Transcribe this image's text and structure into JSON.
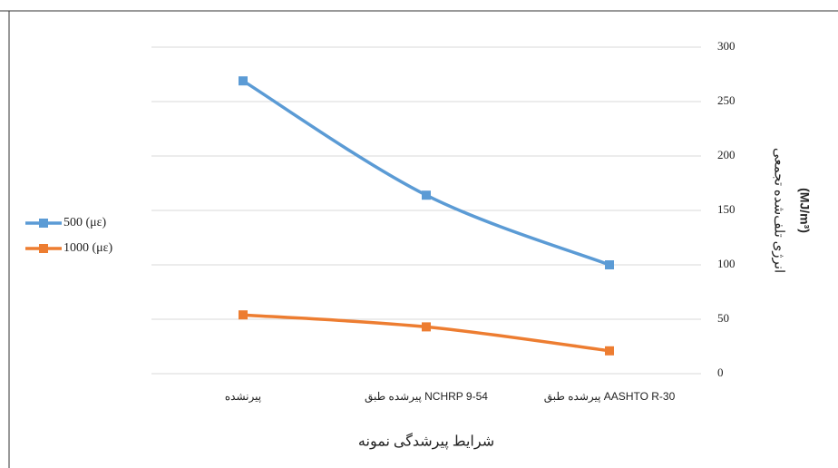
{
  "chart_data": {
    "type": "line",
    "categories": [
      "پیرنشده",
      "پیرشده طبق NCHRP 9-54",
      "پیرشده طبق AASHTO R-30"
    ],
    "series": [
      {
        "name": "500 (με)",
        "color": "#5b9bd5",
        "values": [
          269,
          164,
          100
        ]
      },
      {
        "name": "1000 (με)",
        "color": "#ed7d31",
        "values": [
          54,
          43,
          21
        ]
      }
    ],
    "ylim": [
      0,
      300
    ],
    "yticks": [
      0,
      50,
      100,
      150,
      200,
      250,
      300
    ],
    "grid": true,
    "y_axis_side": "right",
    "legend": "left",
    "xlabel": "شرایط پیرشدگی نمونه",
    "ylabel": [
      "انرژی تلف‌شده تجمعی",
      "(MJ/m³)"
    ]
  }
}
